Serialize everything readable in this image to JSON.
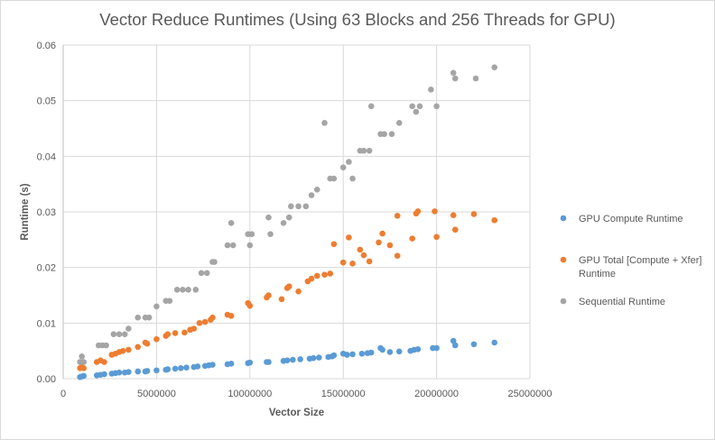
{
  "chart_data": {
    "type": "scatter",
    "title": "Vector Reduce Runtimes (Using 63 Blocks and 256 Threads for GPU)",
    "xlabel": "Vector Size",
    "ylabel": "Runtime (s)",
    "xlim": [
      0,
      25000000
    ],
    "ylim": [
      0,
      0.06
    ],
    "xticks": [
      0,
      5000000,
      10000000,
      15000000,
      20000000,
      25000000
    ],
    "xtick_labels": [
      "0",
      "5000000",
      "10000000",
      "15000000",
      "20000000",
      "25000000"
    ],
    "yticks": [
      0,
      0.01,
      0.02,
      0.03,
      0.04,
      0.05,
      0.06
    ],
    "ytick_labels": [
      "0.00",
      "0.01",
      "0.02",
      "0.03",
      "0.04",
      "0.05",
      "0.06"
    ],
    "grid": "vertical-and-horizontal",
    "legend_position": "right",
    "series": [
      {
        "name": "GPU Compute Runtime",
        "color": "#5b9bd5",
        "points": [
          [
            900000,
            0.0003
          ],
          [
            1000000,
            0.0004
          ],
          [
            1100000,
            0.0005
          ],
          [
            1800000,
            0.0006
          ],
          [
            2000000,
            0.0007
          ],
          [
            2200000,
            0.0008
          ],
          [
            2600000,
            0.0009
          ],
          [
            2800000,
            0.001
          ],
          [
            3000000,
            0.0011
          ],
          [
            3300000,
            0.0011
          ],
          [
            3500000,
            0.0012
          ],
          [
            4000000,
            0.0013
          ],
          [
            4400000,
            0.0013
          ],
          [
            4500000,
            0.0014
          ],
          [
            5000000,
            0.0015
          ],
          [
            5500000,
            0.0016
          ],
          [
            5600000,
            0.0017
          ],
          [
            6000000,
            0.0018
          ],
          [
            6300000,
            0.0019
          ],
          [
            6600000,
            0.002
          ],
          [
            7000000,
            0.0021
          ],
          [
            7200000,
            0.0022
          ],
          [
            7600000,
            0.0023
          ],
          [
            7800000,
            0.0024
          ],
          [
            8000000,
            0.0025
          ],
          [
            8800000,
            0.0026
          ],
          [
            9000000,
            0.0027
          ],
          [
            9900000,
            0.0028
          ],
          [
            10000000,
            0.0029
          ],
          [
            10900000,
            0.003
          ],
          [
            11000000,
            0.003
          ],
          [
            11800000,
            0.0032
          ],
          [
            12000000,
            0.0033
          ],
          [
            12300000,
            0.0034
          ],
          [
            12700000,
            0.0035
          ],
          [
            13200000,
            0.0036
          ],
          [
            13400000,
            0.0037
          ],
          [
            13700000,
            0.0038
          ],
          [
            14200000,
            0.0039
          ],
          [
            14400000,
            0.004
          ],
          [
            14500000,
            0.0042
          ],
          [
            15000000,
            0.0045
          ],
          [
            15200000,
            0.0043
          ],
          [
            15500000,
            0.0044
          ],
          [
            16000000,
            0.0045
          ],
          [
            16300000,
            0.0046
          ],
          [
            16500000,
            0.0047
          ],
          [
            17000000,
            0.0055
          ],
          [
            17100000,
            0.0052
          ],
          [
            17500000,
            0.0048
          ],
          [
            18000000,
            0.0049
          ],
          [
            18600000,
            0.005
          ],
          [
            18800000,
            0.0052
          ],
          [
            19000000,
            0.0053
          ],
          [
            19800000,
            0.0055
          ],
          [
            20000000,
            0.0055
          ],
          [
            20900000,
            0.0068
          ],
          [
            21000000,
            0.006
          ],
          [
            22000000,
            0.0062
          ],
          [
            23100000,
            0.0065
          ]
        ]
      },
      {
        "name": "GPU Total [Compute + Xfer] Runtime",
        "legend_lines": [
          "GPU Total [Compute + Xfer]",
          "Runtime"
        ],
        "color": "#ed7d31",
        "points": [
          [
            900000,
            0.0019
          ],
          [
            1000000,
            0.0021
          ],
          [
            1100000,
            0.0019
          ],
          [
            1800000,
            0.003
          ],
          [
            2000000,
            0.0033
          ],
          [
            2200000,
            0.003
          ],
          [
            2600000,
            0.0043
          ],
          [
            2800000,
            0.0045
          ],
          [
            3000000,
            0.0048
          ],
          [
            3200000,
            0.005
          ],
          [
            3500000,
            0.0052
          ],
          [
            4000000,
            0.0057
          ],
          [
            4400000,
            0.0065
          ],
          [
            4500000,
            0.0063
          ],
          [
            5000000,
            0.0071
          ],
          [
            5500000,
            0.0077
          ],
          [
            5600000,
            0.008
          ],
          [
            6000000,
            0.0082
          ],
          [
            6500000,
            0.0083
          ],
          [
            6800000,
            0.0088
          ],
          [
            7000000,
            0.009
          ],
          [
            7300000,
            0.01
          ],
          [
            7600000,
            0.0102
          ],
          [
            7900000,
            0.0106
          ],
          [
            8000000,
            0.011
          ],
          [
            8800000,
            0.0115
          ],
          [
            9000000,
            0.0113
          ],
          [
            9900000,
            0.0136
          ],
          [
            10000000,
            0.0131
          ],
          [
            10900000,
            0.0146
          ],
          [
            11000000,
            0.015
          ],
          [
            11700000,
            0.0143
          ],
          [
            12000000,
            0.0163
          ],
          [
            12100000,
            0.0166
          ],
          [
            12600000,
            0.0157
          ],
          [
            13100000,
            0.0175
          ],
          [
            13300000,
            0.018
          ],
          [
            13600000,
            0.0185
          ],
          [
            14000000,
            0.0187
          ],
          [
            14300000,
            0.0189
          ],
          [
            14500000,
            0.0242
          ],
          [
            15000000,
            0.0209
          ],
          [
            15300000,
            0.0254
          ],
          [
            15500000,
            0.0207
          ],
          [
            15900000,
            0.0232
          ],
          [
            16100000,
            0.0222
          ],
          [
            16400000,
            0.0211
          ],
          [
            16900000,
            0.0245
          ],
          [
            17100000,
            0.0261
          ],
          [
            17500000,
            0.024
          ],
          [
            17900000,
            0.0221
          ],
          [
            18700000,
            0.0252
          ],
          [
            18900000,
            0.0297
          ],
          [
            19000000,
            0.0301
          ],
          [
            19900000,
            0.0301
          ],
          [
            20000000,
            0.0255
          ],
          [
            20900000,
            0.0294
          ],
          [
            21000000,
            0.0268
          ],
          [
            22000000,
            0.0296
          ],
          [
            23100000,
            0.0285
          ],
          [
            17900000,
            0.0293
          ]
        ]
      },
      {
        "name": "Sequential Runtime",
        "color": "#a5a5a5",
        "points": [
          [
            900000,
            0.003
          ],
          [
            1000000,
            0.004
          ],
          [
            1100000,
            0.003
          ],
          [
            1900000,
            0.006
          ],
          [
            2100000,
            0.006
          ],
          [
            2300000,
            0.006
          ],
          [
            2700000,
            0.008
          ],
          [
            3000000,
            0.008
          ],
          [
            3300000,
            0.008
          ],
          [
            3500000,
            0.009
          ],
          [
            4000000,
            0.011
          ],
          [
            4400000,
            0.011
          ],
          [
            4600000,
            0.011
          ],
          [
            5000000,
            0.013
          ],
          [
            5500000,
            0.014
          ],
          [
            5700000,
            0.014
          ],
          [
            6100000,
            0.016
          ],
          [
            6400000,
            0.016
          ],
          [
            6700000,
            0.016
          ],
          [
            7100000,
            0.016
          ],
          [
            7400000,
            0.019
          ],
          [
            7700000,
            0.019
          ],
          [
            8000000,
            0.021
          ],
          [
            8100000,
            0.021
          ],
          [
            8800000,
            0.024
          ],
          [
            9000000,
            0.028
          ],
          [
            9100000,
            0.024
          ],
          [
            9900000,
            0.026
          ],
          [
            10000000,
            0.024
          ],
          [
            10100000,
            0.026
          ],
          [
            11000000,
            0.029
          ],
          [
            11100000,
            0.026
          ],
          [
            11800000,
            0.028
          ],
          [
            12100000,
            0.029
          ],
          [
            12200000,
            0.031
          ],
          [
            12600000,
            0.031
          ],
          [
            13000000,
            0.031
          ],
          [
            13300000,
            0.033
          ],
          [
            13600000,
            0.034
          ],
          [
            14000000,
            0.046
          ],
          [
            14300000,
            0.036
          ],
          [
            14500000,
            0.036
          ],
          [
            15000000,
            0.038
          ],
          [
            15300000,
            0.039
          ],
          [
            15500000,
            0.036
          ],
          [
            15900000,
            0.041
          ],
          [
            16100000,
            0.041
          ],
          [
            16400000,
            0.041
          ],
          [
            16500000,
            0.049
          ],
          [
            17000000,
            0.044
          ],
          [
            17200000,
            0.044
          ],
          [
            17600000,
            0.044
          ],
          [
            18000000,
            0.046
          ],
          [
            18700000,
            0.049
          ],
          [
            18900000,
            0.048
          ],
          [
            19100000,
            0.049
          ],
          [
            19700000,
            0.052
          ],
          [
            20000000,
            0.049
          ],
          [
            20900000,
            0.055
          ],
          [
            21000000,
            0.054
          ],
          [
            22100000,
            0.054
          ],
          [
            23100000,
            0.056
          ]
        ]
      }
    ]
  }
}
